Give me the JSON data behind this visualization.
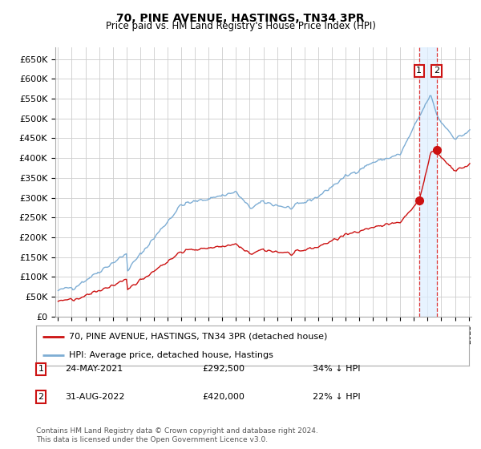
{
  "title": "70, PINE AVENUE, HASTINGS, TN34 3PR",
  "subtitle": "Price paid vs. HM Land Registry's House Price Index (HPI)",
  "legend_line1": "70, PINE AVENUE, HASTINGS, TN34 3PR (detached house)",
  "legend_line2": "HPI: Average price, detached house, Hastings",
  "footnote": "Contains HM Land Registry data © Crown copyright and database right 2024.\nThis data is licensed under the Open Government Licence v3.0.",
  "sale1_date": "24-MAY-2021",
  "sale1_price": "£292,500",
  "sale1_hpi": "34% ↓ HPI",
  "sale2_date": "31-AUG-2022",
  "sale2_price": "£420,000",
  "sale2_hpi": "22% ↓ HPI",
  "sale1_x": 2021.38,
  "sale1_y": 292500,
  "sale2_x": 2022.67,
  "sale2_y": 420000,
  "ylim": [
    0,
    680000
  ],
  "xlim": [
    1994.8,
    2025.2
  ],
  "yticks": [
    0,
    50000,
    100000,
    150000,
    200000,
    250000,
    300000,
    350000,
    400000,
    450000,
    500000,
    550000,
    600000,
    650000
  ],
  "ytick_labels": [
    "£0",
    "£50K",
    "£100K",
    "£150K",
    "£200K",
    "£250K",
    "£300K",
    "£350K",
    "£400K",
    "£450K",
    "£500K",
    "£550K",
    "£600K",
    "£650K"
  ],
  "hpi_color": "#7dadd4",
  "price_color": "#cc1111",
  "vline_color": "#dd3333",
  "vband_color": "#ddeeff",
  "grid_color": "#cccccc",
  "bg_color": "#ffffff"
}
